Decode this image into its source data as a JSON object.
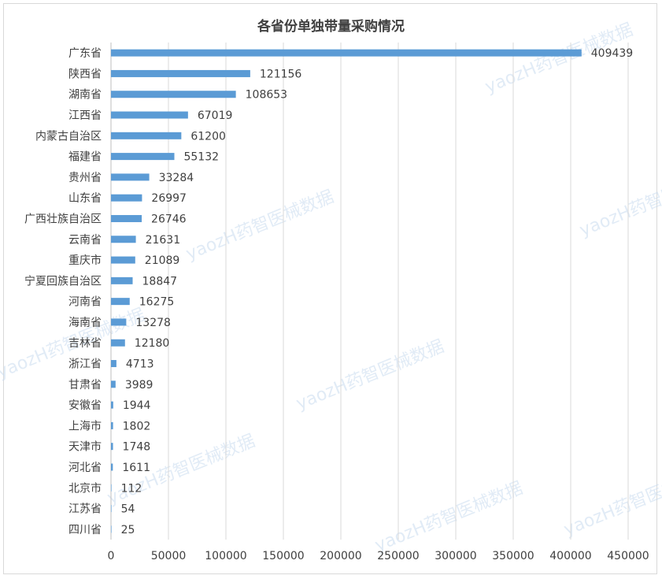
{
  "chart_data": {
    "type": "bar",
    "orientation": "horizontal",
    "title": "各省份单独带量采购情况",
    "categories": [
      "广东省",
      "陕西省",
      "湖南省",
      "江西省",
      "内蒙古自治区",
      "福建省",
      "贵州省",
      "山东省",
      "广西壮族自治区",
      "云南省",
      "重庆市",
      "宁夏回族自治区",
      "河南省",
      "海南省",
      "吉林省",
      "浙江省",
      "甘肃省",
      "安徽省",
      "上海市",
      "天津市",
      "河北省",
      "北京市",
      "江苏省",
      "四川省"
    ],
    "values": [
      409439,
      121156,
      108653,
      67019,
      61200,
      55132,
      33284,
      26997,
      26746,
      21631,
      21089,
      18847,
      16275,
      13278,
      12180,
      4713,
      3989,
      1944,
      1802,
      1748,
      1611,
      112,
      54,
      25
    ],
    "xlim": [
      0,
      450000
    ],
    "xticks": [
      0,
      50000,
      100000,
      150000,
      200000,
      250000,
      300000,
      350000,
      400000,
      450000
    ],
    "grid": "vertical",
    "bar_color": "#5b9bd5",
    "watermark": "yaozH药智医械数据"
  }
}
